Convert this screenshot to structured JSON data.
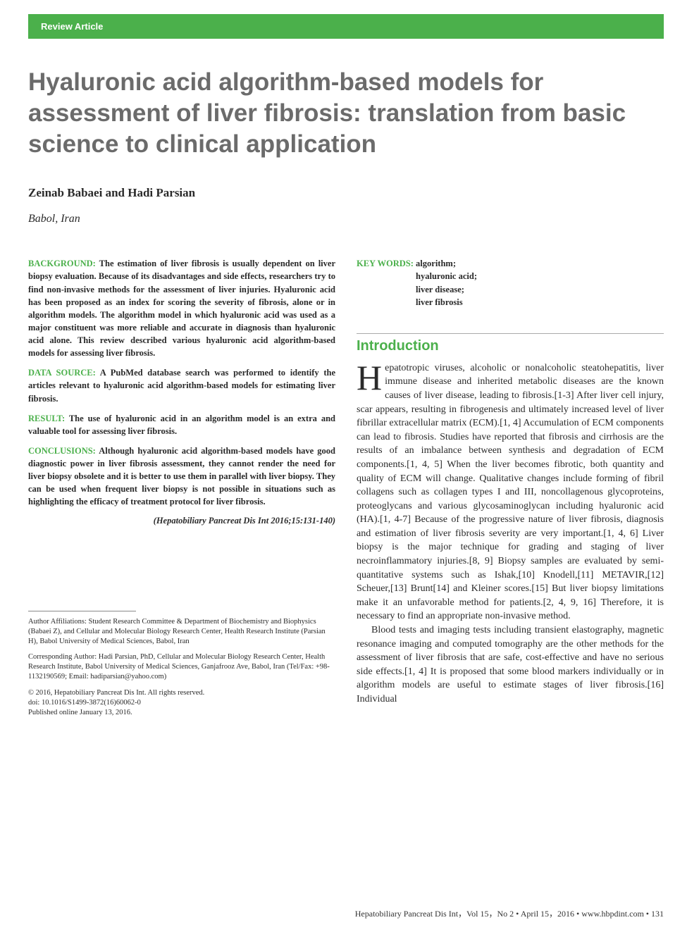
{
  "banner": {
    "label": "Review Article"
  },
  "title": "Hyaluronic acid algorithm-based models for assessment of liver fibrosis: translation from basic science to clinical application",
  "authors": "Zeinab Babaei and Hadi Parsian",
  "location": "Babol, Iran",
  "abstract": {
    "background": {
      "label": "BACKGROUND:",
      "text": " The estimation of liver fibrosis is usually dependent on liver biopsy evaluation. Because of its disadvantages and side effects, researchers try to find non-invasive methods for the assessment of liver injuries. Hyaluronic acid has been proposed as an index for scoring the severity of fibrosis, alone or in algorithm models. The algorithm model in which hyaluronic acid was used as a major constituent was more reliable and accurate in diagnosis than hyaluronic acid alone. This review described various hyaluronic acid algorithm-based models for assessing liver fibrosis."
    },
    "data_source": {
      "label": "DATA SOURCE:",
      "text": " A PubMed database search was performed to identify the articles relevant to hyaluronic acid algorithm-based models for estimating liver fibrosis."
    },
    "result": {
      "label": "RESULT:",
      "text": " The use of hyaluronic acid in an algorithm model is an extra and valuable tool for assessing liver fibrosis."
    },
    "conclusions": {
      "label": "CONCLUSIONS:",
      "text": " Although hyaluronic acid algorithm-based models have good diagnostic power in liver fibrosis assessment, they cannot render the need for liver biopsy obsolete and it is better to use them in parallel with liver biopsy. They can be used when frequent liver biopsy is not possible in situations such as highlighting the efficacy of treatment protocol for liver fibrosis."
    }
  },
  "citation": "(Hepatobiliary Pancreat Dis Int 2016;15:131-140)",
  "keywords": {
    "label": "KEY WORDS:",
    "items": [
      "algorithm;",
      "hyaluronic acid;",
      "liver disease;",
      "liver fibrosis"
    ]
  },
  "introduction": {
    "heading": "Introduction",
    "dropcap": "H",
    "p1": "epatotropic viruses, alcoholic or nonalcoholic steatohepatitis, liver immune disease and inherited metabolic diseases are the known causes of liver disease, leading to fibrosis.[1-3] After liver cell injury, scar appears, resulting in fibrogenesis and ultimately increased level of liver fibrillar extracellular matrix (ECM).[1, 4] Accumulation of ECM components can lead to fibrosis. Studies have reported that fibrosis and cirrhosis are the results of an imbalance between synthesis and degradation of ECM components.[1, 4, 5] When the liver becomes fibrotic, both quantity and quality of ECM will change. Qualitative changes include forming of fibril collagens such as collagen types I and III, noncollagenous glycoproteins, proteoglycans and various glycosaminoglycan including hyaluronic acid (HA).[1, 4-7] Because of the progressive nature of liver fibrosis, diagnosis and estimation of liver fibrosis severity are very important.[1, 4, 6] Liver biopsy is the major technique for grading and staging of liver necroinflammatory injuries.[8, 9] Biopsy samples are evaluated by semi-quantitative systems such as Ishak,[10] Knodell,[11] METAVIR,[12] Scheuer,[13] Brunt[14] and Kleiner scores.[15] But liver biopsy limitations make it an unfavorable method for patients.[2, 4, 9, 16] Therefore, it is necessary to find an appropriate non-invasive method.",
    "p2": "Blood tests and imaging tests including transient elastography, magnetic resonance imaging and computed tomography are the other methods for the assessment of liver fibrosis that are safe, cost-effective and have no serious side effects.[1, 4] It is proposed that some blood markers individually or in algorithm models are useful to estimate stages of liver fibrosis.[16] Individual"
  },
  "footnotes": {
    "affil": "Author Affiliations: Student Research Committee & Department of Biochemistry and Biophysics (Babaei Z), and Cellular and Molecular Biology Research Center, Health Research Institute (Parsian H), Babol University of Medical Sciences, Babol, Iran",
    "corr": "Corresponding Author: Hadi Parsian, PhD, Cellular and Molecular Biology Research Center, Health Research Institute, Babol University of Medical Sciences, Ganjafrooz Ave, Babol, Iran (Tel/Fax: +98-1132190569; Email: hadiparsian@yahoo.com)",
    "copyright": "© 2016, Hepatobiliary Pancreat Dis Int. All rights reserved.",
    "doi": "doi: 10.1016/S1499-3872(16)60062-0",
    "pub": "Published online January 13, 2016."
  },
  "footer": "Hepatobiliary Pancreat Dis Int，Vol 15，No 2 • April 15，2016 • www.hbpdint.com • 131",
  "colors": {
    "accent": "#4bb04b",
    "title_gray": "#6b6b6b",
    "text": "#2a2a2a"
  }
}
